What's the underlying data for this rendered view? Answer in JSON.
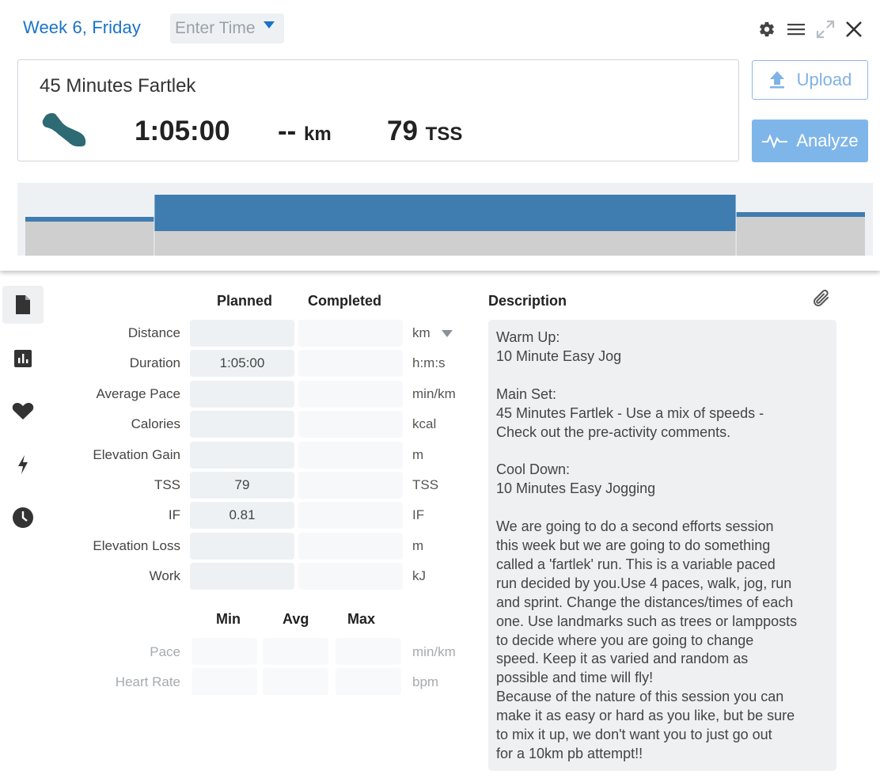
{
  "header": {
    "day_title": "Week 6, Friday",
    "time_placeholder": "Enter Time",
    "icons": [
      "gear-icon",
      "menu-icon",
      "expand-icon",
      "close-icon"
    ]
  },
  "summary": {
    "title": "45 Minutes Fartlek",
    "sport_icon": "running-shoe-icon",
    "duration": "1:05:00",
    "distance_value": "--",
    "distance_unit": "km",
    "tss_value": "79",
    "tss_unit": "TSS"
  },
  "actions": {
    "upload_label": "Upload",
    "analyze_label": "Analyze"
  },
  "workout_structure": {
    "steps": [
      {
        "name": "Warm Up",
        "minutes": 10,
        "intensity": "easy"
      },
      {
        "name": "Main Set",
        "minutes": 45,
        "intensity": "varied"
      },
      {
        "name": "Cool Down",
        "minutes": 10,
        "intensity": "easy"
      }
    ]
  },
  "side_nav": [
    {
      "name": "details",
      "icon": "document-icon",
      "active": true
    },
    {
      "name": "charts",
      "icon": "bar-chart-icon",
      "active": false
    },
    {
      "name": "heart-rate",
      "icon": "heart-icon",
      "active": false
    },
    {
      "name": "power",
      "icon": "lightning-icon",
      "active": false
    },
    {
      "name": "time",
      "icon": "clock-icon",
      "active": false
    }
  ],
  "metrics": {
    "planned_header": "Planned",
    "completed_header": "Completed",
    "rows": [
      {
        "label": "Distance",
        "planned": "",
        "completed": "",
        "unit": "km"
      },
      {
        "label": "Duration",
        "planned": "1:05:00",
        "completed": "",
        "unit": "h:m:s"
      },
      {
        "label": "Average Pace",
        "planned": "",
        "completed": "",
        "unit": "min/km"
      },
      {
        "label": "Calories",
        "planned": "",
        "completed": "",
        "unit": "kcal"
      },
      {
        "label": "Elevation Gain",
        "planned": "",
        "completed": "",
        "unit": "m"
      },
      {
        "label": "TSS",
        "planned": "79",
        "completed": "",
        "unit": "TSS"
      },
      {
        "label": "IF",
        "planned": "0.81",
        "completed": "",
        "unit": "IF"
      },
      {
        "label": "Elevation Loss",
        "planned": "",
        "completed": "",
        "unit": "m"
      },
      {
        "label": "Work",
        "planned": "",
        "completed": "",
        "unit": "kJ"
      }
    ]
  },
  "ranges": {
    "min_header": "Min",
    "avg_header": "Avg",
    "max_header": "Max",
    "rows": [
      {
        "label": "Pace",
        "min": "",
        "avg": "",
        "max": "",
        "unit": "min/km"
      },
      {
        "label": "Heart Rate",
        "min": "",
        "avg": "",
        "max": "",
        "unit": "bpm"
      }
    ]
  },
  "description": {
    "header": "Description",
    "attach_icon": "paperclip-icon",
    "text": "Warm Up:\n10 Minute Easy Jog\n\nMain Set:\n45 Minutes Fartlek - Use a mix of speeds -\nCheck out the pre-activity comments.\n\nCool Down:\n10 Minutes Easy Jogging\n\nWe are going to do a second efforts session\nthis week but we are going to do something\ncalled a 'fartlek' run. This is a variable paced\nrun decided by you.Use 4 paces, walk, jog, run\nand sprint. Change the distances/times of each\none. Use landmarks such as trees or lampposts\nto decide where you are going to change\nspeed. Keep it as varied and random as\npossible and time will fly!\nBecause of the nature of this session you can\nmake it as easy or hard as you like, but be sure\nto mix it up, we don't want you to just go out\nfor a 10km pb attempt!!"
  },
  "colors": {
    "accent": "#1a73c8",
    "workout_bar": "#3f7cb0",
    "analyze_bg": "#7fb6ea"
  }
}
